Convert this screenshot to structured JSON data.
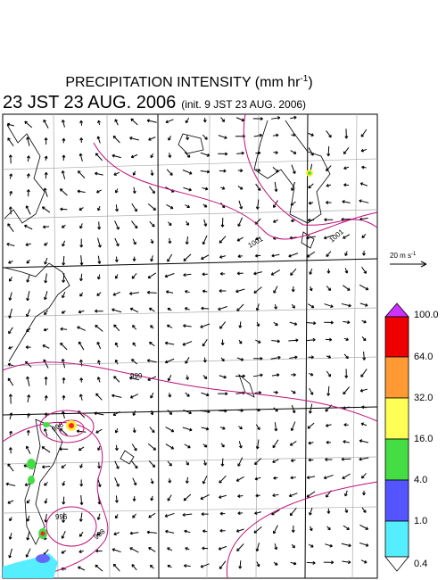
{
  "title": {
    "main": "PRECIPITATION INTENSITY (mm hr",
    "exponent": "-1",
    "close": ")"
  },
  "valid_time": "23 JST 23 AUG. 2006",
  "init_time": "(init. 9 JST 23 AUG. 2006)",
  "wind_scale": {
    "label": "20 m s",
    "exponent": "-1"
  },
  "colorbar": {
    "labels": [
      "100.0",
      "64.0",
      "32.0",
      "16.0",
      "4.0",
      "1.0",
      "0.4"
    ]
  },
  "contour_labels": [
    "1001",
    "1001",
    "999",
    "998",
    "996",
    "998"
  ]
}
